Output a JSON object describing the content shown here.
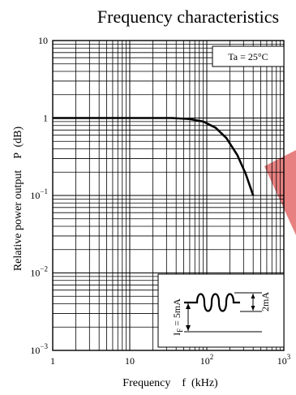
{
  "chart_data": {
    "type": "line",
    "title": "Frequency characteristics",
    "xlabel": "Frequency    f  (kHz)",
    "ylabel": "Relative power output    P  (dB)",
    "x_scale": "log",
    "y_scale": "log",
    "xlim": [
      1,
      1000
    ],
    "ylim": [
      0.001,
      10
    ],
    "grid": true,
    "x_ticks": [
      {
        "value": 1,
        "base": "1",
        "exp": ""
      },
      {
        "value": 10,
        "base": "10",
        "exp": ""
      },
      {
        "value": 100,
        "base": "10",
        "exp": "2"
      },
      {
        "value": 1000,
        "base": "10",
        "exp": "3"
      }
    ],
    "y_ticks": [
      {
        "value": 10,
        "base": "10",
        "exp": ""
      },
      {
        "value": 1,
        "base": "1",
        "exp": ""
      },
      {
        "value": 0.1,
        "base": "10",
        "exp": "−1"
      },
      {
        "value": 0.01,
        "base": "10",
        "exp": "−2"
      },
      {
        "value": 0.001,
        "base": "10",
        "exp": "−3"
      }
    ],
    "series": [
      {
        "x": [
          1,
          10,
          35,
          60,
          90,
          130,
          180,
          250,
          320,
          400
        ],
        "y": [
          1,
          1,
          1,
          0.97,
          0.9,
          0.75,
          0.55,
          0.33,
          0.19,
          0.1
        ]
      }
    ],
    "annotations": {
      "condition": "Ta = 25°C",
      "waveform_current": "I",
      "waveform_current_sub": "F",
      "waveform_current_value": " = 5mA",
      "waveform_amplitude": "2mA"
    }
  },
  "colors": {
    "curve": "#000000",
    "grid": "#000000",
    "background": "#ffffff",
    "stray_shape": "#e36a6a"
  }
}
